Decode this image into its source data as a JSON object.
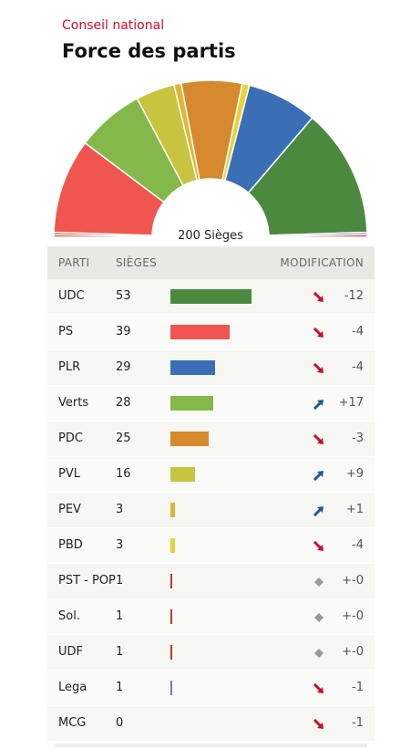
{
  "header": {
    "eyebrow": "Conseil national",
    "title": "Force des partis",
    "total_label": "200 Sièges"
  },
  "table": {
    "col_party": "PARTI",
    "col_seats": "SIÈGES",
    "col_change": "MODIFICATION"
  },
  "chart_data": {
    "type": "bar",
    "total_seats": 200,
    "categories": [
      "UDC",
      "PS",
      "PLR",
      "Verts",
      "PDC",
      "PVL",
      "PEV",
      "PBD",
      "PST - POP",
      "Sol.",
      "UDF",
      "Lega",
      "MCG"
    ],
    "series": [
      {
        "values": [
          53,
          39,
          29,
          28,
          25,
          16,
          3,
          3,
          1,
          1,
          1,
          1,
          0
        ]
      }
    ],
    "changes": [
      "-12",
      "-4",
      "-4",
      "+17",
      "-3",
      "+9",
      "+1",
      "-4",
      "+-0",
      "+-0",
      "+-0",
      "-1",
      "-1"
    ],
    "directions": [
      "down",
      "down",
      "down",
      "up",
      "down",
      "up",
      "up",
      "down",
      "none",
      "none",
      "none",
      "down",
      "down"
    ],
    "colors": [
      "#4b8a3e",
      "#f0564f",
      "#3a6fb5",
      "#84b84a",
      "#d68a2d",
      "#c7c43f",
      "#e0b634",
      "#e8d33a",
      "#c0392b",
      "#c0392b",
      "#c0392b",
      "#8e6ccf",
      "#777777"
    ],
    "hemicycle_order": [
      "Sol.",
      "PST - POP",
      "PS",
      "Verts",
      "PVL",
      "PEV",
      "PDC",
      "PBD",
      "PLR",
      "UDC",
      "Lega",
      "MCG",
      "UDF"
    ],
    "arrow_colors": {
      "up": "#1f5a96",
      "down": "#c8102e",
      "none": "#999999"
    }
  }
}
